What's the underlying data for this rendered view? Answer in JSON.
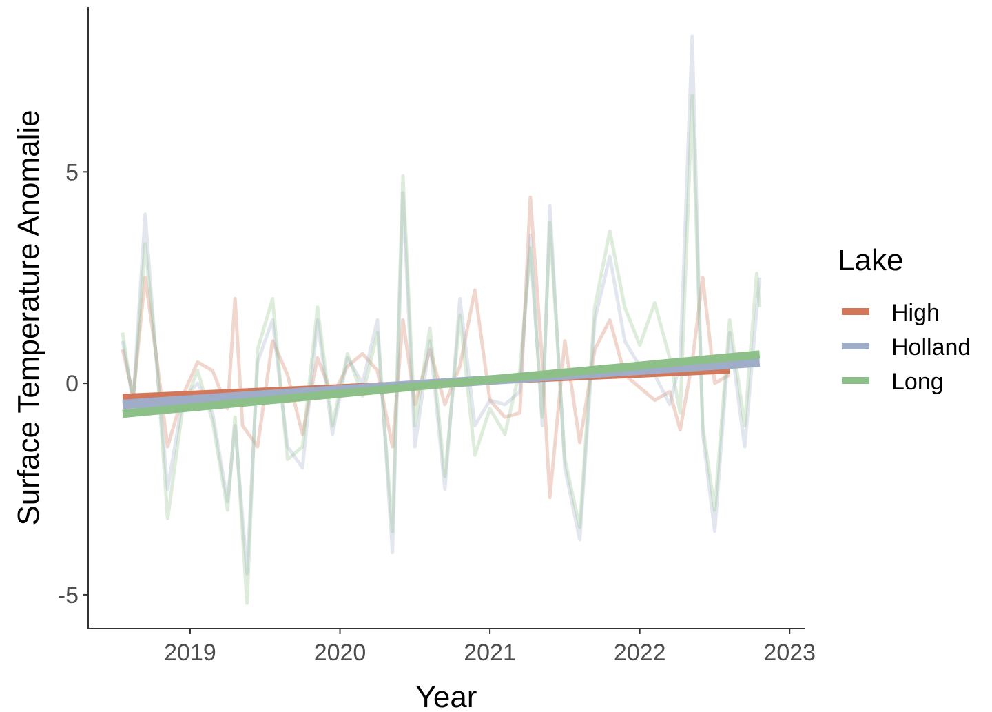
{
  "chart_data": {
    "type": "line",
    "title": "",
    "xlabel": "Year",
    "ylabel": "Surface Temperature Anomalie",
    "xlim": [
      2018.32,
      2023.1
    ],
    "ylim": [
      -5.8,
      8.9
    ],
    "x_ticks": [
      "2019",
      "2020",
      "2021",
      "2022",
      "2023"
    ],
    "y_ticks": [
      "-5",
      "0",
      "5"
    ],
    "grid": false,
    "legend": {
      "title": "Lake",
      "position": "right"
    },
    "series": [
      {
        "name": "High",
        "color": "#d2775a",
        "raw": [
          [
            2018.55,
            0.8
          ],
          [
            2018.62,
            -0.3
          ],
          [
            2018.7,
            2.5
          ],
          [
            2018.78,
            0.5
          ],
          [
            2018.85,
            -1.5
          ],
          [
            2018.95,
            -0.3
          ],
          [
            2019.05,
            0.5
          ],
          [
            2019.15,
            0.3
          ],
          [
            2019.25,
            -0.6
          ],
          [
            2019.3,
            2.0
          ],
          [
            2019.35,
            -1.0
          ],
          [
            2019.45,
            -1.5
          ],
          [
            2019.55,
            1.0
          ],
          [
            2019.65,
            0.2
          ],
          [
            2019.75,
            -1.2
          ],
          [
            2019.85,
            0.6
          ],
          [
            2019.95,
            -0.3
          ],
          [
            2020.05,
            0.4
          ],
          [
            2020.15,
            0.7
          ],
          [
            2020.25,
            0.3
          ],
          [
            2020.35,
            -1.5
          ],
          [
            2020.42,
            1.5
          ],
          [
            2020.5,
            -0.5
          ],
          [
            2020.6,
            0.8
          ],
          [
            2020.7,
            -0.5
          ],
          [
            2020.8,
            0.4
          ],
          [
            2020.9,
            2.2
          ],
          [
            2021.0,
            -0.4
          ],
          [
            2021.1,
            -0.8
          ],
          [
            2021.2,
            -0.7
          ],
          [
            2021.27,
            4.4
          ],
          [
            2021.35,
            0.5
          ],
          [
            2021.4,
            -2.7
          ],
          [
            2021.5,
            1.0
          ],
          [
            2021.6,
            -1.4
          ],
          [
            2021.7,
            0.8
          ],
          [
            2021.8,
            1.5
          ],
          [
            2021.9,
            0.2
          ],
          [
            2022.0,
            -0.1
          ],
          [
            2022.1,
            -0.4
          ],
          [
            2022.2,
            -0.2
          ],
          [
            2022.27,
            -1.1
          ],
          [
            2022.35,
            0.5
          ],
          [
            2022.42,
            2.5
          ],
          [
            2022.5,
            0.0
          ],
          [
            2022.6,
            0.2
          ]
        ],
        "trend": [
          [
            2018.55,
            -0.33
          ],
          [
            2022.6,
            0.31
          ]
        ]
      },
      {
        "name": "Holland",
        "color": "#9fadc9",
        "raw": [
          [
            2018.55,
            1.0
          ],
          [
            2018.62,
            -0.4
          ],
          [
            2018.7,
            4.0
          ],
          [
            2018.78,
            0.3
          ],
          [
            2018.85,
            -2.5
          ],
          [
            2018.95,
            -0.4
          ],
          [
            2019.05,
            0.0
          ],
          [
            2019.15,
            -0.7
          ],
          [
            2019.25,
            -2.8
          ],
          [
            2019.3,
            -1.0
          ],
          [
            2019.38,
            -4.5
          ],
          [
            2019.45,
            0.5
          ],
          [
            2019.55,
            1.5
          ],
          [
            2019.65,
            -1.5
          ],
          [
            2019.75,
            -2.0
          ],
          [
            2019.85,
            1.5
          ],
          [
            2019.95,
            -1.2
          ],
          [
            2020.05,
            0.6
          ],
          [
            2020.15,
            0.0
          ],
          [
            2020.25,
            1.5
          ],
          [
            2020.35,
            -4.0
          ],
          [
            2020.42,
            4.5
          ],
          [
            2020.5,
            -1.5
          ],
          [
            2020.6,
            1.0
          ],
          [
            2020.7,
            -2.5
          ],
          [
            2020.8,
            2.0
          ],
          [
            2020.9,
            -1.0
          ],
          [
            2021.0,
            -0.4
          ],
          [
            2021.1,
            -0.5
          ],
          [
            2021.2,
            -0.2
          ],
          [
            2021.27,
            3.5
          ],
          [
            2021.35,
            -1.0
          ],
          [
            2021.4,
            4.2
          ],
          [
            2021.5,
            -2.0
          ],
          [
            2021.6,
            -3.7
          ],
          [
            2021.7,
            1.5
          ],
          [
            2021.8,
            3.0
          ],
          [
            2021.9,
            1.0
          ],
          [
            2022.0,
            0.4
          ],
          [
            2022.1,
            0.2
          ],
          [
            2022.2,
            -0.5
          ],
          [
            2022.27,
            0.5
          ],
          [
            2022.35,
            8.2
          ],
          [
            2022.42,
            -1.2
          ],
          [
            2022.5,
            -3.5
          ],
          [
            2022.6,
            1.2
          ],
          [
            2022.7,
            -1.5
          ],
          [
            2022.8,
            2.5
          ]
        ],
        "trend": [
          [
            2018.55,
            -0.5
          ],
          [
            2022.8,
            0.5
          ]
        ]
      },
      {
        "name": "Long",
        "color": "#8dbf88",
        "raw": [
          [
            2018.55,
            1.2
          ],
          [
            2018.62,
            -0.5
          ],
          [
            2018.7,
            3.3
          ],
          [
            2018.78,
            0.4
          ],
          [
            2018.85,
            -3.2
          ],
          [
            2018.95,
            -0.6
          ],
          [
            2019.05,
            0.3
          ],
          [
            2019.15,
            -0.9
          ],
          [
            2019.25,
            -3.0
          ],
          [
            2019.3,
            -0.8
          ],
          [
            2019.38,
            -5.2
          ],
          [
            2019.45,
            0.8
          ],
          [
            2019.55,
            2.0
          ],
          [
            2019.65,
            -1.8
          ],
          [
            2019.75,
            -1.5
          ],
          [
            2019.85,
            1.8
          ],
          [
            2019.95,
            -1.0
          ],
          [
            2020.05,
            0.7
          ],
          [
            2020.15,
            -0.3
          ],
          [
            2020.25,
            1.2
          ],
          [
            2020.35,
            -3.5
          ],
          [
            2020.42,
            4.9
          ],
          [
            2020.5,
            -1.0
          ],
          [
            2020.6,
            1.3
          ],
          [
            2020.7,
            -2.2
          ],
          [
            2020.8,
            1.6
          ],
          [
            2020.9,
            -1.7
          ],
          [
            2021.0,
            -0.6
          ],
          [
            2021.1,
            -1.2
          ],
          [
            2021.2,
            0.3
          ],
          [
            2021.27,
            3.2
          ],
          [
            2021.35,
            -0.8
          ],
          [
            2021.4,
            3.8
          ],
          [
            2021.5,
            -1.8
          ],
          [
            2021.6,
            -3.4
          ],
          [
            2021.7,
            1.8
          ],
          [
            2021.8,
            3.6
          ],
          [
            2021.9,
            1.8
          ],
          [
            2022.0,
            0.9
          ],
          [
            2022.1,
            1.9
          ],
          [
            2022.2,
            0.6
          ],
          [
            2022.27,
            -0.7
          ],
          [
            2022.35,
            6.8
          ],
          [
            2022.42,
            -1.0
          ],
          [
            2022.5,
            -3.0
          ],
          [
            2022.6,
            1.5
          ],
          [
            2022.7,
            -1.0
          ],
          [
            2022.78,
            2.6
          ],
          [
            2022.8,
            1.8
          ]
        ],
        "trend": [
          [
            2018.55,
            -0.72
          ],
          [
            2022.8,
            0.68
          ]
        ]
      }
    ]
  }
}
